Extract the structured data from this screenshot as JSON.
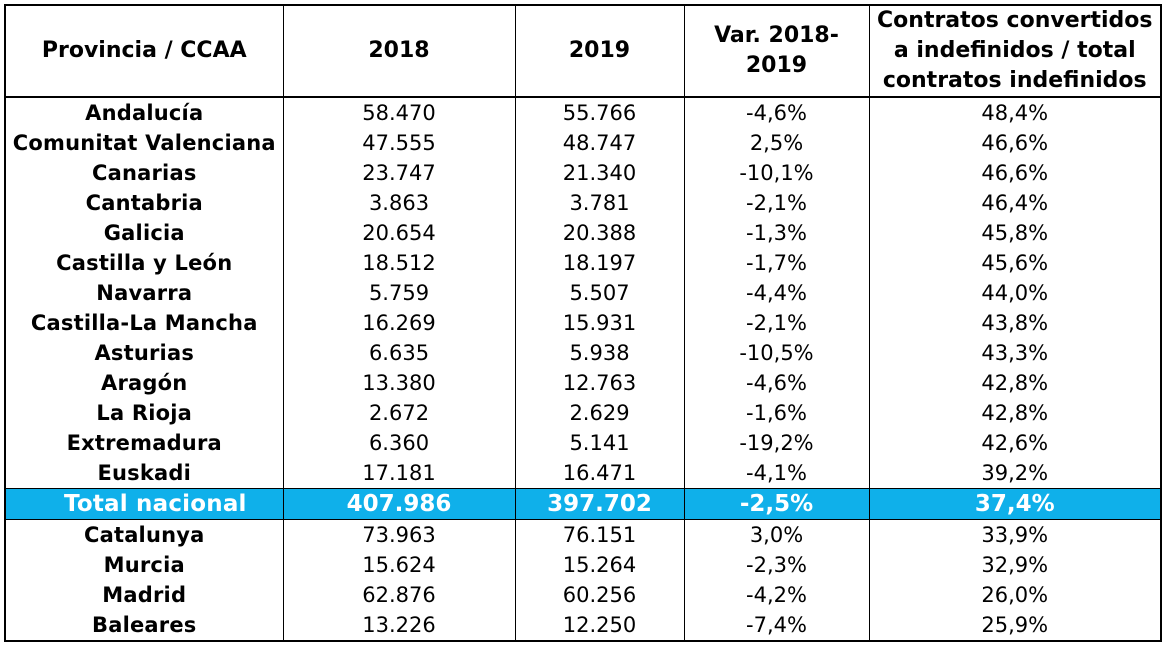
{
  "headers": {
    "province": "Provincia / CCAA",
    "y2018": "2018",
    "y2019": "2019",
    "var_line1": "Var. 2018-",
    "var_line2": "2019",
    "conv_line1": "Contratos convertidos",
    "conv_line2": "a indefinidos / total",
    "conv_line3": "contratos indefinidos"
  },
  "rows": [
    {
      "name": "Andalucía",
      "y2018": "58.470",
      "y2019": "55.766",
      "var": "-4,6%",
      "ratio": "48,4%"
    },
    {
      "name": "Comunitat Valenciana",
      "y2018": "47.555",
      "y2019": "48.747",
      "var": "2,5%",
      "ratio": "46,6%"
    },
    {
      "name": "Canarias",
      "y2018": "23.747",
      "y2019": "21.340",
      "var": "-10,1%",
      "ratio": "46,6%"
    },
    {
      "name": "Cantabria",
      "y2018": "3.863",
      "y2019": "3.781",
      "var": "-2,1%",
      "ratio": "46,4%"
    },
    {
      "name": "Galicia",
      "y2018": "20.654",
      "y2019": "20.388",
      "var": "-1,3%",
      "ratio": "45,8%"
    },
    {
      "name": "Castilla y León",
      "y2018": "18.512",
      "y2019": "18.197",
      "var": "-1,7%",
      "ratio": "45,6%"
    },
    {
      "name": "Navarra",
      "y2018": "5.759",
      "y2019": "5.507",
      "var": "-4,4%",
      "ratio": "44,0%"
    },
    {
      "name": "Castilla-La Mancha",
      "y2018": "16.269",
      "y2019": "15.931",
      "var": "-2,1%",
      "ratio": "43,8%"
    },
    {
      "name": "Asturias",
      "y2018": "6.635",
      "y2019": "5.938",
      "var": "-10,5%",
      "ratio": "43,3%"
    },
    {
      "name": "Aragón",
      "y2018": "13.380",
      "y2019": "12.763",
      "var": "-4,6%",
      "ratio": "42,8%"
    },
    {
      "name": "La Rioja",
      "y2018": "2.672",
      "y2019": "2.629",
      "var": "-1,6%",
      "ratio": "42,8%"
    },
    {
      "name": "Extremadura",
      "y2018": "6.360",
      "y2019": "5.141",
      "var": "-19,2%",
      "ratio": "42,6%"
    },
    {
      "name": "Euskadi",
      "y2018": "17.181",
      "y2019": "16.471",
      "var": "-4,1%",
      "ratio": "39,2%"
    },
    {
      "name": "Total nacional",
      "y2018": "407.986",
      "y2019": "397.702",
      "var": "-2,5%",
      "ratio": "37,4%",
      "highlight": true
    },
    {
      "name": "Catalunya",
      "y2018": "73.963",
      "y2019": "76.151",
      "var": "3,0%",
      "ratio": "33,9%"
    },
    {
      "name": "Murcia",
      "y2018": "15.624",
      "y2019": "15.264",
      "var": "-2,3%",
      "ratio": "32,9%"
    },
    {
      "name": "Madrid",
      "y2018": "62.876",
      "y2019": "60.256",
      "var": "-4,2%",
      "ratio": "26,0%"
    },
    {
      "name": "Baleares",
      "y2018": "13.226",
      "y2019": "12.250",
      "var": "-7,4%",
      "ratio": "25,9%"
    }
  ],
  "colors": {
    "highlight_bg": "#0fb0ea",
    "highlight_text": "#ffffff",
    "border": "#000000"
  }
}
